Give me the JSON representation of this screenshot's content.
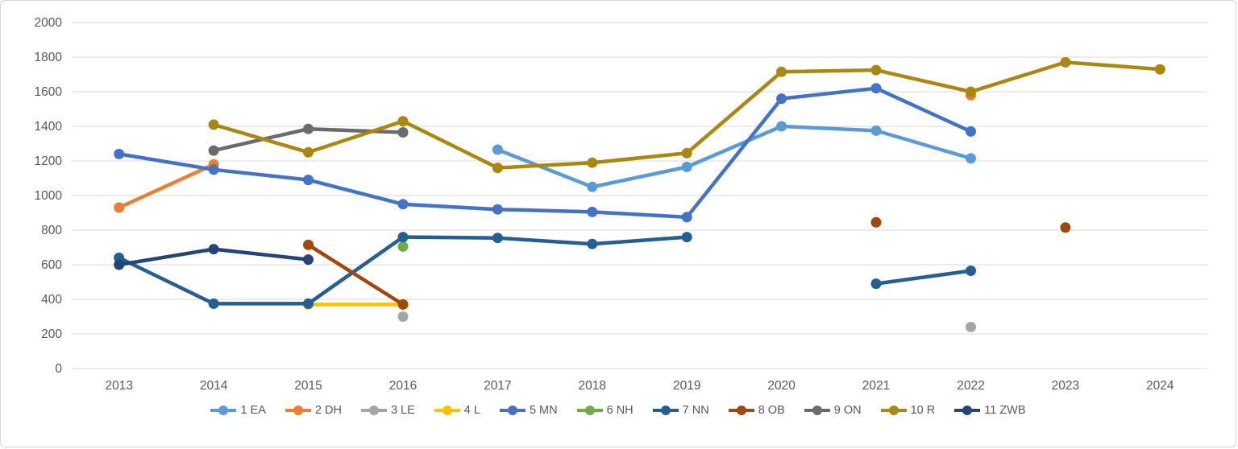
{
  "colors": {
    "background": "#ffffff",
    "frame_border": "#d6d6d6",
    "gridline": "#d9d9d9",
    "axis_text": "#595959"
  },
  "chart_data": {
    "type": "line",
    "title": "",
    "xlabel": "",
    "ylabel": "",
    "grid": "horizontal",
    "legend_position": "bottom",
    "ylim": [
      0,
      2000
    ],
    "ytick_step": 200,
    "ytick_labels": [
      "0",
      "200",
      "400",
      "600",
      "800",
      "1000",
      "1200",
      "1400",
      "1600",
      "1800",
      "2000"
    ],
    "categories": [
      "2013",
      "2014",
      "2015",
      "2016",
      "2017",
      "2018",
      "2019",
      "2020",
      "2021",
      "2022",
      "2023",
      "2024"
    ],
    "series": [
      {
        "name": "1 EA",
        "color": "#5B9BD5",
        "values": [
          null,
          null,
          null,
          null,
          1265,
          1050,
          1165,
          1400,
          1375,
          1215,
          null,
          null
        ]
      },
      {
        "name": "2 DH",
        "color": "#ED7D31",
        "values": [
          930,
          1180,
          null,
          null,
          null,
          null,
          null,
          null,
          null,
          1580,
          null,
          null
        ]
      },
      {
        "name": "3 LE",
        "color": "#A5A5A5",
        "values": [
          null,
          null,
          null,
          300,
          null,
          null,
          null,
          null,
          null,
          240,
          null,
          null
        ]
      },
      {
        "name": "4 L",
        "color": "#FFC000",
        "values": [
          null,
          null,
          370,
          370,
          null,
          null,
          null,
          null,
          null,
          null,
          null,
          null
        ]
      },
      {
        "name": "5 MN",
        "color": "#4472C4",
        "values": [
          1240,
          1150,
          1090,
          950,
          920,
          905,
          875,
          1560,
          1620,
          1370,
          null,
          null
        ]
      },
      {
        "name": "6 NH",
        "color": "#70AD47",
        "values": [
          null,
          null,
          null,
          705,
          null,
          null,
          null,
          null,
          null,
          null,
          null,
          null
        ]
      },
      {
        "name": "7 NN",
        "color": "#255E91",
        "values": [
          640,
          375,
          375,
          760,
          755,
          720,
          760,
          null,
          490,
          565,
          null,
          null
        ]
      },
      {
        "name": "8 OB",
        "color": "#9E480E",
        "values": [
          null,
          null,
          715,
          370,
          null,
          null,
          null,
          null,
          845,
          null,
          815,
          null
        ]
      },
      {
        "name": "9 ON",
        "color": "#6B6B6B",
        "values": [
          null,
          1260,
          1385,
          1365,
          null,
          null,
          null,
          null,
          null,
          null,
          null,
          null
        ]
      },
      {
        "name": "10 R",
        "color": "#A98710",
        "values": [
          null,
          1410,
          1250,
          1430,
          1160,
          1190,
          1245,
          1715,
          1725,
          1600,
          1770,
          1730
        ]
      },
      {
        "name": "11 ZWB",
        "color": "#264478",
        "values": [
          600,
          690,
          630,
          null,
          null,
          null,
          null,
          null,
          null,
          null,
          null,
          null
        ]
      }
    ]
  }
}
